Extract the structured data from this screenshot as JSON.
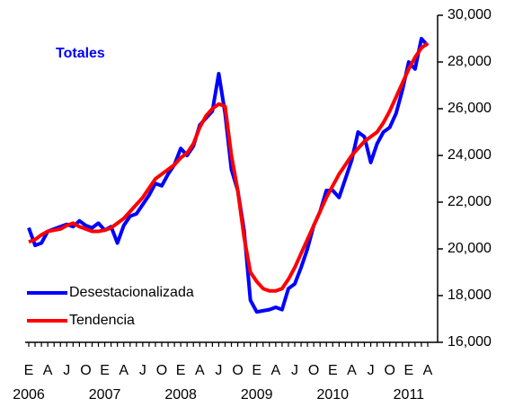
{
  "chart_data": {
    "type": "line",
    "annotation": "Totales",
    "annotation_color": "#0000ff",
    "categories": [
      "E",
      null,
      null,
      "A",
      null,
      null,
      "J",
      null,
      null,
      "O",
      null,
      null,
      "E",
      null,
      null,
      "A",
      null,
      null,
      "J",
      null,
      null,
      "O",
      null,
      null,
      "E",
      null,
      null,
      "A",
      null,
      null,
      "J",
      null,
      null,
      "O",
      null,
      null,
      "E",
      null,
      null,
      "A",
      null,
      null,
      "J",
      null,
      null,
      "O",
      null,
      null,
      "E",
      null,
      null,
      "A",
      null,
      null,
      "J",
      null,
      null,
      "O",
      null,
      null,
      "E",
      null,
      null,
      "A"
    ],
    "year_labels": [
      "2006",
      null,
      null,
      null,
      null,
      null,
      null,
      null,
      null,
      null,
      null,
      null,
      "2007",
      null,
      null,
      null,
      null,
      null,
      null,
      null,
      null,
      null,
      null,
      null,
      "2008",
      null,
      null,
      null,
      null,
      null,
      null,
      null,
      null,
      null,
      null,
      null,
      "2009",
      null,
      null,
      null,
      null,
      null,
      null,
      null,
      null,
      null,
      null,
      null,
      "2010",
      null,
      null,
      null,
      null,
      null,
      null,
      null,
      null,
      null,
      null,
      null,
      "2011",
      null,
      null,
      null
    ],
    "series": [
      {
        "name": "Desestacionalizada",
        "color": "#0000ff",
        "values": [
          20900,
          20150,
          20250,
          20750,
          20850,
          20950,
          21050,
          20950,
          21200,
          21000,
          20900,
          21100,
          20800,
          20950,
          20250,
          21000,
          21400,
          21500,
          21900,
          22300,
          22800,
          22700,
          23200,
          23600,
          24300,
          24000,
          24400,
          25300,
          25600,
          25900,
          27500,
          25800,
          23400,
          22500,
          20800,
          17800,
          17300,
          17350,
          17400,
          17500,
          17400,
          18300,
          18500,
          19200,
          20000,
          21000,
          21600,
          22500,
          22500,
          22200,
          23000,
          23800,
          25000,
          24800,
          23700,
          24500,
          25000,
          25200,
          25800,
          26800,
          28000,
          27700,
          29000,
          28700
        ]
      },
      {
        "name": "Tendencia",
        "color": "#ff0000",
        "values": [
          20300,
          20400,
          20600,
          20750,
          20800,
          20850,
          21000,
          21100,
          20950,
          20850,
          20750,
          20750,
          20800,
          20900,
          21100,
          21300,
          21600,
          21900,
          22200,
          22600,
          23000,
          23200,
          23400,
          23600,
          23900,
          24100,
          24500,
          25200,
          25700,
          26000,
          26200,
          26100,
          24000,
          22500,
          20500,
          19000,
          18600,
          18300,
          18200,
          18200,
          18300,
          18700,
          19200,
          19800,
          20400,
          21000,
          21600,
          22200,
          22700,
          23200,
          23600,
          24000,
          24300,
          24600,
          24800,
          25000,
          25400,
          25900,
          26500,
          27100,
          27700,
          28200,
          28600,
          28800
        ]
      }
    ],
    "ylim": [
      16000,
      30000
    ],
    "yticks": [
      {
        "value": 16000,
        "label": "16,000"
      },
      {
        "value": 18000,
        "label": "18,000"
      },
      {
        "value": 20000,
        "label": "20,000"
      },
      {
        "value": 22000,
        "label": "22,000"
      },
      {
        "value": 24000,
        "label": "24,000"
      },
      {
        "value": 26000,
        "label": "26,000"
      },
      {
        "value": 28000,
        "label": "28,000"
      },
      {
        "value": 30000,
        "label": "30,000"
      }
    ],
    "legend": "bottom-left"
  }
}
